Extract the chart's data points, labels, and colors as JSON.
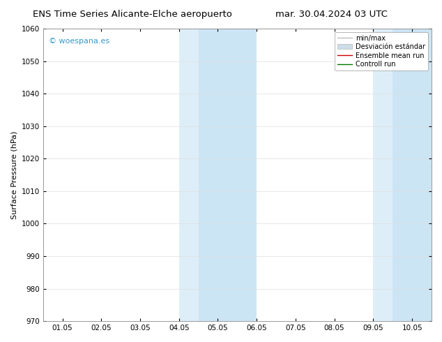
{
  "title_left": "ENS Time Series Alicante-Elche aeropuerto",
  "title_right": "mar. 30.04.2024 03 UTC",
  "ylabel": "Surface Pressure (hPa)",
  "watermark": "© woespana.es",
  "ylim": [
    970,
    1060
  ],
  "yticks": [
    970,
    980,
    990,
    1000,
    1010,
    1020,
    1030,
    1040,
    1050,
    1060
  ],
  "xtick_labels": [
    "01.05",
    "02.05",
    "03.05",
    "04.05",
    "05.05",
    "06.05",
    "07.05",
    "08.05",
    "09.05",
    "10.05"
  ],
  "n_xticks": 10,
  "xlim": [
    0,
    9
  ],
  "shaded_regions": [
    {
      "xmin": 3.0,
      "xmax": 3.5,
      "color": "#ddeef8"
    },
    {
      "xmin": 3.5,
      "xmax": 5.0,
      "color": "#cce5f5"
    },
    {
      "xmin": 8.0,
      "xmax": 8.5,
      "color": "#ddeef8"
    },
    {
      "xmin": 8.5,
      "xmax": 9.5,
      "color": "#cce5f5"
    }
  ],
  "legend_items": [
    {
      "label": "min/max",
      "color": "#bbbbbb",
      "lw": 1.0,
      "style": "line"
    },
    {
      "label": "Desviación estándar",
      "color": "#ccdde8",
      "style": "fill"
    },
    {
      "label": "Ensemble mean run",
      "color": "#cc0000",
      "lw": 1.0,
      "style": "line"
    },
    {
      "label": "Controll run",
      "color": "#007700",
      "lw": 1.0,
      "style": "line"
    }
  ],
  "bg_color": "#ffffff",
  "plot_bg_color": "#ffffff",
  "border_color": "#888888",
  "grid_color": "#dddddd",
  "title_fontsize": 9.5,
  "ylabel_fontsize": 8,
  "tick_fontsize": 7.5,
  "legend_fontsize": 7,
  "watermark_color": "#3399cc",
  "watermark_fontsize": 8
}
